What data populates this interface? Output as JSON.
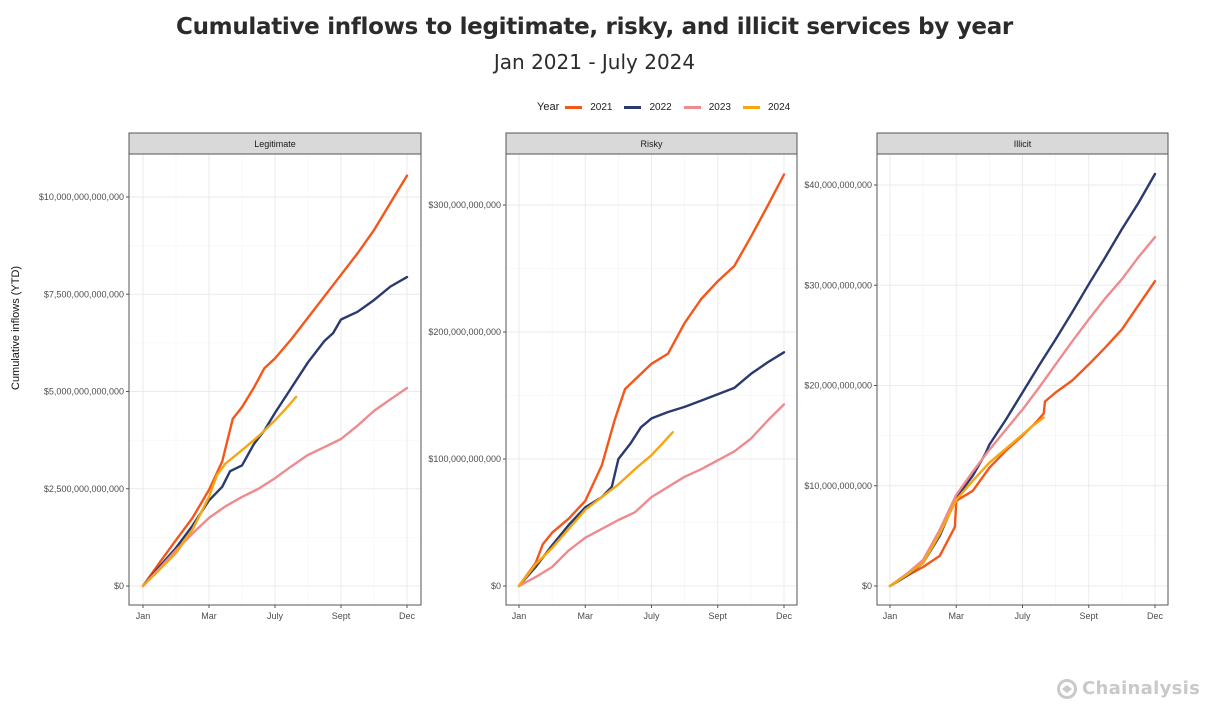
{
  "header": {
    "title": "Cumulative inflows to legitimate, risky, and illicit services by year",
    "subtitle": "Jan 2021 - July 2024"
  },
  "legend": {
    "title": "Year",
    "items": [
      {
        "label": "2021",
        "color": "#F5571A"
      },
      {
        "label": "2022",
        "color": "#2B3A6E"
      },
      {
        "label": "2023",
        "color": "#EF8A8E"
      },
      {
        "label": "2024",
        "color": "#F6A611"
      }
    ]
  },
  "y_axis_label": "Cumulative inflows (YTD)",
  "logo": {
    "text": "Chainalysis",
    "icon": "chainalysis-logo-icon"
  },
  "chart_data": [
    {
      "type": "line",
      "title": "Legitimate",
      "xlabel": "",
      "ylabel": "Cumulative inflows (YTD)",
      "x_unit": "fraction of year",
      "x_ticks": [
        {
          "pos": 0,
          "label": "Jan"
        },
        {
          "pos": 0.25,
          "label": "Mar"
        },
        {
          "pos": 0.5,
          "label": "July"
        },
        {
          "pos": 0.75,
          "label": "Sept"
        },
        {
          "pos": 1.0,
          "label": "Dec"
        }
      ],
      "y_ticks": [
        {
          "value": 0,
          "label": "$0"
        },
        {
          "value": 2500000000000,
          "label": "$2,500,000,000,000"
        },
        {
          "value": 5000000000000,
          "label": "$5,000,000,000,000"
        },
        {
          "value": 7500000000000,
          "label": "$7,500,000,000,000"
        },
        {
          "value": 10000000000000,
          "label": "$10,000,000,000,000"
        }
      ],
      "ylim": [
        -550000000000,
        11400000000000
      ],
      "grid": true,
      "series": [
        {
          "name": "2021",
          "x": [
            0,
            0.0625,
            0.125,
            0.1875,
            0.25,
            0.3,
            0.34,
            0.375,
            0.42,
            0.46,
            0.5,
            0.5625,
            0.625,
            0.6875,
            0.75,
            0.8125,
            0.875,
            0.9375,
            1.0
          ],
          "values": [
            0,
            600000000000.0,
            1180000000000.0,
            1750000000000.0,
            2470000000000.0,
            3200000000000.0,
            4300000000000.0,
            4600000000000.0,
            5100000000000.0,
            5600000000000.0,
            5850000000000.0,
            6350000000000.0,
            6900000000000.0,
            7450000000000.0,
            8000000000000.0,
            8550000000000.0,
            9150000000000.0,
            9850000000000.0,
            10550000000000.0
          ]
        },
        {
          "name": "2022",
          "x": [
            0,
            0.0625,
            0.125,
            0.1875,
            0.25,
            0.3,
            0.33,
            0.375,
            0.42,
            0.46,
            0.5,
            0.5625,
            0.625,
            0.6875,
            0.72,
            0.75,
            0.8125,
            0.875,
            0.9375,
            1.0
          ],
          "values": [
            0,
            500000000000.0,
            980000000000.0,
            1550000000000.0,
            2200000000000.0,
            2550000000000.0,
            2950000000000.0,
            3100000000000.0,
            3650000000000.0,
            4000000000000.0,
            4450000000000.0,
            5100000000000.0,
            5750000000000.0,
            6300000000000.0,
            6500000000000.0,
            6850000000000.0,
            7050000000000.0,
            7350000000000.0,
            7700000000000.0,
            7940000000000.0
          ]
        },
        {
          "name": "2023",
          "x": [
            0,
            0.0625,
            0.125,
            0.1875,
            0.25,
            0.3125,
            0.375,
            0.4375,
            0.5,
            0.5625,
            0.625,
            0.6875,
            0.75,
            0.8125,
            0.875,
            0.9375,
            1.0
          ],
          "values": [
            0,
            450000000000.0,
            920000000000.0,
            1350000000000.0,
            1750000000000.0,
            2050000000000.0,
            2290000000000.0,
            2500000000000.0,
            2770000000000.0,
            3080000000000.0,
            3370000000000.0,
            3570000000000.0,
            3780000000000.0,
            4120000000000.0,
            4500000000000.0,
            4800000000000.0,
            5090000000000.0
          ]
        },
        {
          "name": "2024",
          "x": [
            0,
            0.0625,
            0.125,
            0.1875,
            0.25,
            0.28,
            0.3125,
            0.375,
            0.4375,
            0.5,
            0.54,
            0.58
          ],
          "values": [
            0,
            420000000000.0,
            850000000000.0,
            1450000000000.0,
            2290000000000.0,
            2850000000000.0,
            3150000000000.0,
            3490000000000.0,
            3850000000000.0,
            4260000000000.0,
            4550000000000.0,
            4860000000000.0
          ]
        }
      ]
    },
    {
      "type": "line",
      "title": "Risky",
      "xlabel": "",
      "ylabel": "Cumulative inflows (YTD)",
      "x_unit": "fraction of year",
      "x_ticks": [
        {
          "pos": 0,
          "label": "Jan"
        },
        {
          "pos": 0.25,
          "label": "Mar"
        },
        {
          "pos": 0.5,
          "label": "July"
        },
        {
          "pos": 0.75,
          "label": "Sept"
        },
        {
          "pos": 1.0,
          "label": "Dec"
        }
      ],
      "y_ticks": [
        {
          "value": 0,
          "label": "$0"
        },
        {
          "value": 100000000000,
          "label": "$100,000,000,000"
        },
        {
          "value": 200000000000,
          "label": "$200,000,000,000"
        },
        {
          "value": 300000000000,
          "label": "$300,000,000,000"
        }
      ],
      "ylim": [
        -15000000000,
        345000000000
      ],
      "grid": true,
      "series": [
        {
          "name": "2021",
          "x": [
            0,
            0.0625,
            0.09,
            0.125,
            0.1875,
            0.25,
            0.3125,
            0.36,
            0.4,
            0.45,
            0.5,
            0.5625,
            0.625,
            0.6875,
            0.75,
            0.8125,
            0.875,
            0.94,
            1.0
          ],
          "values": [
            0,
            18000000000.0,
            33000000000.0,
            42000000000.0,
            53000000000.0,
            67000000000.0,
            95000000000.0,
            130000000000.0,
            155000000000.0,
            165000000000.0,
            175000000000.0,
            183000000000.0,
            207000000000.0,
            226000000000.0,
            240000000000.0,
            252000000000.0,
            275000000000.0,
            300000000000.0,
            324000000000.0
          ]
        },
        {
          "name": "2022",
          "x": [
            0,
            0.0625,
            0.125,
            0.1875,
            0.25,
            0.3125,
            0.35,
            0.375,
            0.42,
            0.46,
            0.5,
            0.5625,
            0.625,
            0.6875,
            0.75,
            0.8125,
            0.875,
            0.9375,
            1.0
          ],
          "values": [
            0,
            15000000000.0,
            32000000000.0,
            48000000000.0,
            62000000000.0,
            70000000000.0,
            78000000000.0,
            100000000000.0,
            112000000000.0,
            125000000000.0,
            132000000000.0,
            137000000000.0,
            141000000000.0,
            146000000000.0,
            151000000000.0,
            156000000000.0,
            167000000000.0,
            176000000000.0,
            184000000000.0
          ]
        },
        {
          "name": "2023",
          "x": [
            0,
            0.0625,
            0.125,
            0.1875,
            0.25,
            0.3125,
            0.375,
            0.4375,
            0.5,
            0.5625,
            0.625,
            0.6875,
            0.75,
            0.8125,
            0.875,
            0.9375,
            1.0
          ],
          "values": [
            0,
            7000000000.0,
            15000000000.0,
            28000000000.0,
            38000000000.0,
            45000000000.0,
            52000000000.0,
            58000000000.0,
            70000000000.0,
            78000000000.0,
            86000000000.0,
            92000000000.0,
            99000000000.0,
            106000000000.0,
            116000000000.0,
            130000000000.0,
            143000000000.0
          ]
        },
        {
          "name": "2024",
          "x": [
            0,
            0.0625,
            0.125,
            0.1875,
            0.25,
            0.3125,
            0.375,
            0.4375,
            0.5,
            0.54,
            0.58
          ],
          "values": [
            0,
            17000000000.0,
            30000000000.0,
            45000000000.0,
            60000000000.0,
            70000000000.0,
            80000000000.0,
            92000000000.0,
            103000000000.0,
            112000000000.0,
            121000000000.0
          ]
        }
      ]
    },
    {
      "type": "line",
      "title": "Illicit",
      "xlabel": "",
      "ylabel": "Cumulative inflows (YTD)",
      "x_unit": "fraction of year",
      "x_ticks": [
        {
          "pos": 0,
          "label": "Jan"
        },
        {
          "pos": 0.25,
          "label": "Mar"
        },
        {
          "pos": 0.5,
          "label": "July"
        },
        {
          "pos": 0.75,
          "label": "Sept"
        },
        {
          "pos": 1.0,
          "label": "Dec"
        }
      ],
      "y_ticks": [
        {
          "value": 0,
          "label": "$0"
        },
        {
          "value": 10000000000,
          "label": "$10,000,000,000"
        },
        {
          "value": 20000000000,
          "label": "$20,000,000,000"
        },
        {
          "value": 30000000000,
          "label": "$30,000,000,000"
        },
        {
          "value": 40000000000,
          "label": "$40,000,000,000"
        }
      ],
      "ylim": [
        -2000000000,
        43000000000
      ],
      "grid": true,
      "series": [
        {
          "name": "2021",
          "x": [
            0,
            0.0625,
            0.125,
            0.1875,
            0.245,
            0.25,
            0.3125,
            0.375,
            0.4375,
            0.5,
            0.55,
            0.58,
            0.585,
            0.625,
            0.6875,
            0.75,
            0.8125,
            0.875,
            0.9375,
            1.0
          ],
          "values": [
            0,
            1000000000.0,
            1900000000.0,
            3000000000.0,
            5900000000.0,
            8500000000.0,
            9500000000.0,
            11800000000.0,
            13500000000.0,
            15000000000.0,
            16300000000.0,
            17200000000.0,
            18400000000.0,
            19300000000.0,
            20500000000.0,
            22100000000.0,
            23800000000.0,
            25600000000.0,
            28000000000.0,
            30400000000.0
          ]
        },
        {
          "name": "2022",
          "x": [
            0,
            0.0625,
            0.125,
            0.1875,
            0.25,
            0.3125,
            0.36,
            0.375,
            0.4375,
            0.5,
            0.5625,
            0.625,
            0.6875,
            0.75,
            0.8125,
            0.875,
            0.9375,
            1.0
          ],
          "values": [
            0,
            1000000000.0,
            2300000000.0,
            5000000000.0,
            8800000000.0,
            11000000000.0,
            13200000000.0,
            14100000000.0,
            16600000000.0,
            19300000000.0,
            22000000000.0,
            24600000000.0,
            27300000000.0,
            30100000000.0,
            32800000000.0,
            35600000000.0,
            38200000000.0,
            41100000000.0
          ]
        },
        {
          "name": "2023",
          "x": [
            0,
            0.0625,
            0.125,
            0.1875,
            0.25,
            0.3125,
            0.375,
            0.4375,
            0.5,
            0.5625,
            0.625,
            0.6875,
            0.75,
            0.8125,
            0.875,
            0.9375,
            1.0
          ],
          "values": [
            0,
            1200000000.0,
            2600000000.0,
            5600000000.0,
            9100000000.0,
            11400000000.0,
            13600000000.0,
            15600000000.0,
            17600000000.0,
            19800000000.0,
            22100000000.0,
            24400000000.0,
            26600000000.0,
            28700000000.0,
            30600000000.0,
            32800000000.0,
            34800000000.0
          ]
        },
        {
          "name": "2024",
          "x": [
            0,
            0.0625,
            0.125,
            0.1875,
            0.25,
            0.3125,
            0.375,
            0.4375,
            0.5,
            0.54,
            0.58
          ],
          "values": [
            0,
            1100000000.0,
            2300000000.0,
            5200000000.0,
            8600000000.0,
            10500000000.0,
            12300000000.0,
            13700000000.0,
            15100000000.0,
            16000000000.0,
            16800000000.0
          ]
        }
      ]
    }
  ]
}
